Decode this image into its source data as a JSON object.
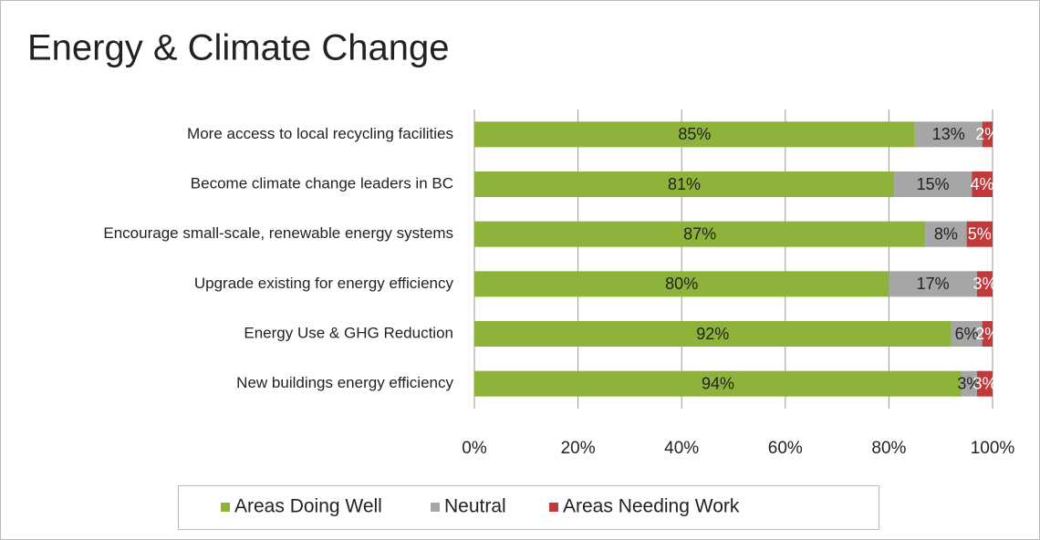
{
  "chart_data": {
    "type": "stacked-bar-horizontal",
    "title": "Energy & Climate Change",
    "categories": [
      "More access to local  recycling facilities",
      "Become climate change leaders in BC",
      "Encourage small-scale, renewable energy systems",
      "Upgrade existing for energy efficiency",
      "Energy Use & GHG Reduction",
      "New buildings energy efficiency"
    ],
    "series": [
      {
        "name": "Areas Doing Well",
        "color": "#8db33a",
        "values": [
          85,
          81,
          87,
          80,
          92,
          94
        ],
        "value_labels": [
          "85%",
          "81%",
          "87%",
          "80%",
          "92%",
          "94%"
        ]
      },
      {
        "name": "Neutral",
        "color": "#a6a6a6",
        "values": [
          13,
          15,
          8,
          17,
          6,
          3
        ],
        "value_labels": [
          "13%",
          "15%",
          "8%",
          "17%",
          "6%",
          "3%"
        ]
      },
      {
        "name": "Areas Needing Work",
        "color": "#c0393b",
        "values": [
          2,
          4,
          5,
          3,
          2,
          3
        ],
        "value_labels": [
          "2%",
          "4%",
          "5%",
          "3%",
          "2%",
          "3%"
        ]
      }
    ],
    "xlim": [
      0,
      100
    ],
    "xticks": [
      {
        "value": 0,
        "label": "0%"
      },
      {
        "value": 20,
        "label": "20%"
      },
      {
        "value": 40,
        "label": "40%"
      },
      {
        "value": 60,
        "label": "60%"
      },
      {
        "value": 80,
        "label": "80%"
      },
      {
        "value": 100,
        "label": "100%"
      }
    ],
    "grid": true,
    "legend": "bottom"
  }
}
